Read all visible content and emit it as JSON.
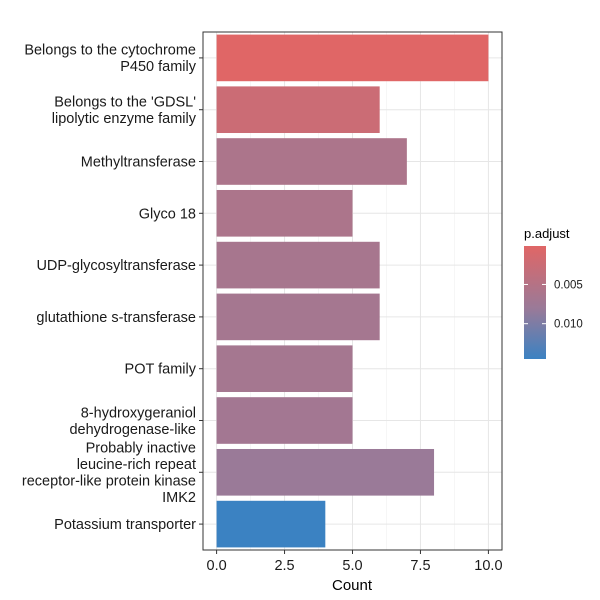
{
  "chart_data": {
    "type": "bar",
    "orientation": "horizontal",
    "categories": [
      "Belongs to the cytochrome P450 family",
      "Belongs to the 'GDSL' lipolytic enzyme family",
      "Methyltransferase",
      "Glyco 18",
      "UDP-glycosyltransferase",
      "glutathione s-transferase",
      "POT family",
      "8-hydroxygeraniol dehydrogenase-like",
      "Probably inactive leucine-rich repeat receptor-like protein kinase IMK2",
      "Potassium transporter"
    ],
    "category_lines": [
      [
        "Belongs to the cytochrome",
        "P450 family"
      ],
      [
        "Belongs to the 'GDSL'",
        "lipolytic enzyme family"
      ],
      [
        "Methyltransferase"
      ],
      [
        "Glyco 18"
      ],
      [
        "UDP-glycosyltransferase"
      ],
      [
        "glutathione s-transferase"
      ],
      [
        "POT family"
      ],
      [
        "8-hydroxygeraniol",
        "dehydrogenase-like"
      ],
      [
        "Probably inactive",
        "leucine-rich repeat",
        "receptor-like protein kinase",
        "IMK2"
      ],
      [
        "Potassium transporter"
      ]
    ],
    "values": [
      10,
      6,
      7,
      5,
      6,
      6,
      5,
      5,
      8,
      4
    ],
    "p_adjust": [
      0.0001,
      0.0025,
      0.006,
      0.006,
      0.0065,
      0.0068,
      0.0068,
      0.007,
      0.008,
      0.0145
    ],
    "xlabel": "Count",
    "ylabel": "",
    "xlim": [
      -0.5,
      10.5
    ],
    "x_ticks": [
      "0.0",
      "2.5",
      "5.0",
      "7.5",
      "10.0"
    ],
    "x_tick_values": [
      0,
      2.5,
      5,
      7.5,
      10
    ],
    "grid": true,
    "legend": {
      "title": "p.adjust",
      "position": "right",
      "ticks": [
        "0.005",
        "0.010"
      ],
      "tick_values": [
        0.005,
        0.01
      ],
      "range": [
        0.0001,
        0.0145
      ],
      "color_low": "#e06666",
      "color_high": "#3b82c2"
    }
  }
}
